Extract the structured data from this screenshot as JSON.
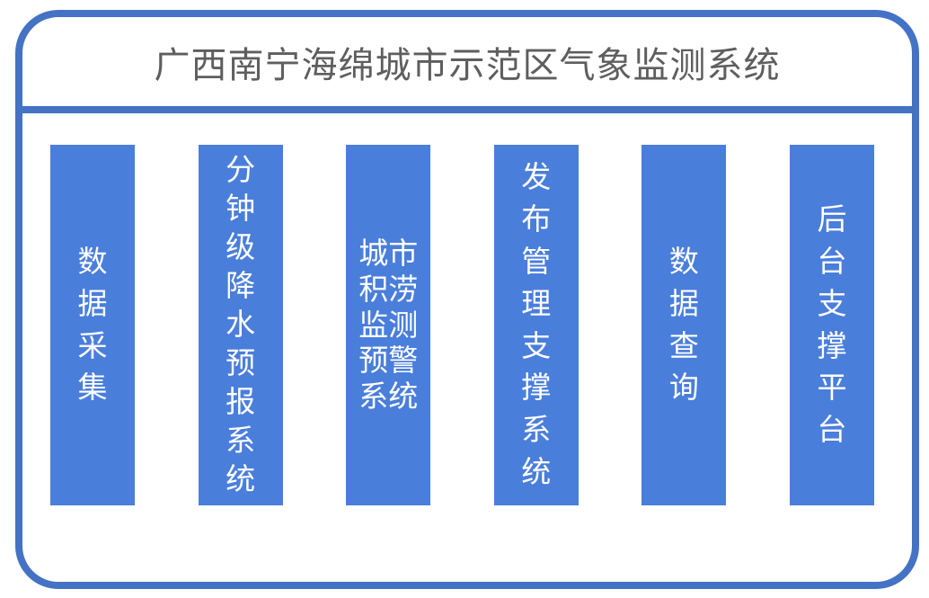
{
  "title": "广西南宁海绵城市示范区气象监测系统",
  "colors": {
    "border": "#4472C4",
    "bar_fill": "#4A7EDB",
    "title_text": "#5E5E5E",
    "bar_text": "#FFFFFF",
    "page_bg": "#FFFFFF"
  },
  "bars": [
    {
      "label": "数据采集"
    },
    {
      "label": "分钟级降水预报系统"
    },
    {
      "label": "城市积涝监测预警系统"
    },
    {
      "label": "发布管理支撑系统"
    },
    {
      "label": "数据查询"
    },
    {
      "label": "后台支撑平台"
    }
  ]
}
